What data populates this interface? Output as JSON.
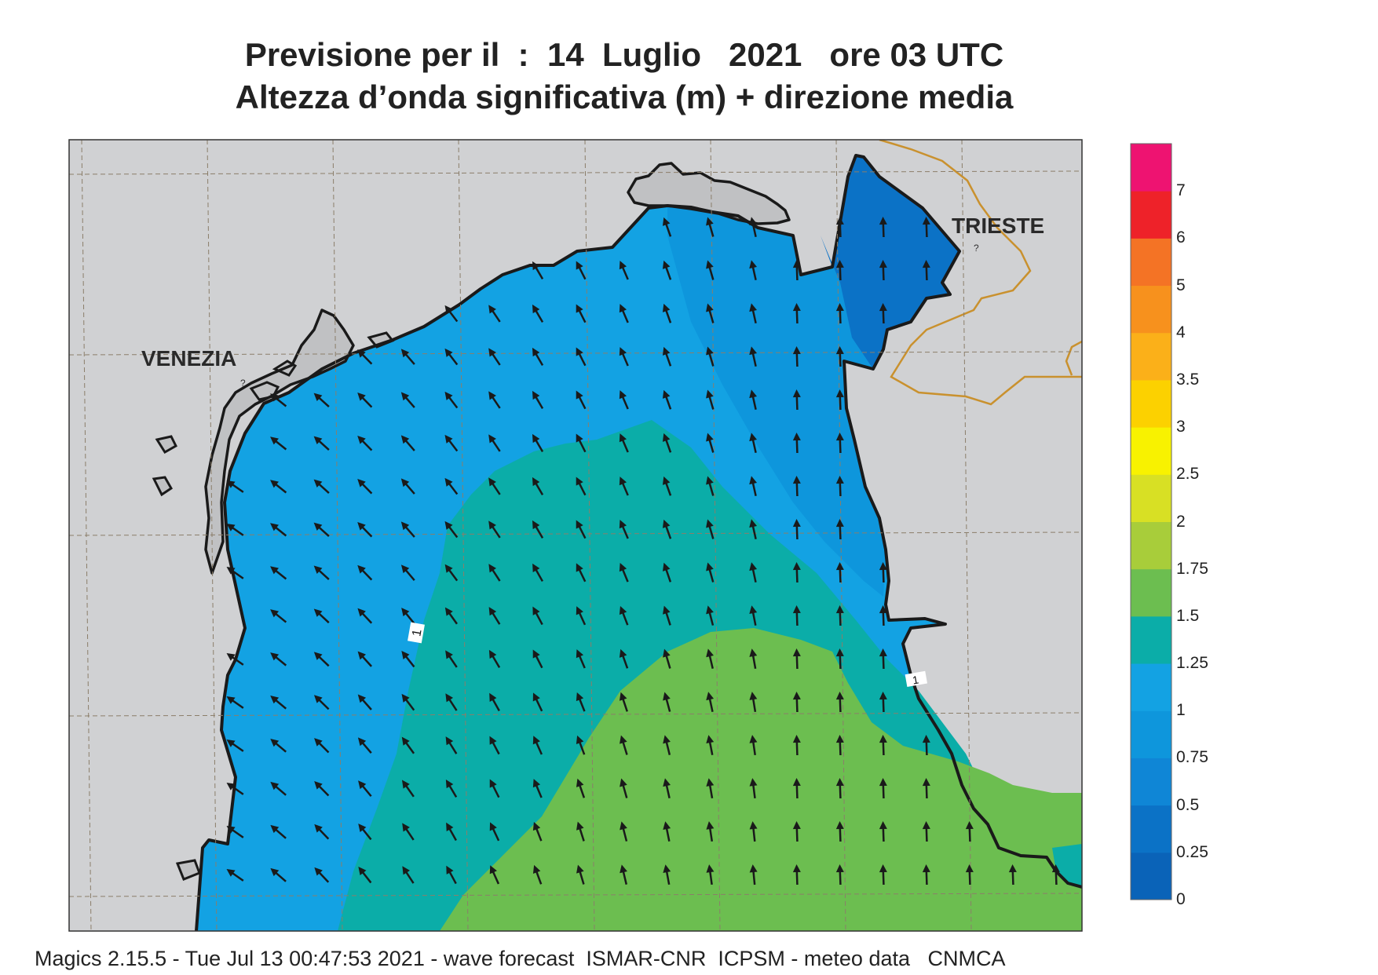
{
  "title": {
    "line1": "Previsione per il  :  14  Luglio   2021   ore 03 UTC",
    "line2": "Altezza d’onda significativa (m) + direzione media"
  },
  "footer": "Magics 2.15.5 - Tue Jul 13 00:47:53 2021 - wave forecast  ISMAR-CNR  ICPSM - meteo data   CNMCA",
  "cities": {
    "venezia": "VENEZIA",
    "trieste": "TRIESTE"
  },
  "contour_label": "1",
  "colorbar": {
    "labels": [
      "0",
      "0.25",
      "0.5",
      "0.75",
      "1",
      "1.25",
      "1.5",
      "1.75",
      "2",
      "2.5",
      "3",
      "3.5",
      "4",
      "5",
      "6",
      "7"
    ],
    "colors": [
      "#0a63b8",
      "#0b72c6",
      "#0f86d6",
      "#0e96dc",
      "#13a2e3",
      "#0bada8",
      "#6cbe50",
      "#a8cd3a",
      "#d8e024",
      "#f8f200",
      "#fcd100",
      "#fbb019",
      "#f7911d",
      "#f47325",
      "#ee2229",
      "#ee1371"
    ]
  },
  "colors": {
    "land": "#d0d1d3",
    "lagoon": "#c0c1c3",
    "coast": "#1a1a1a",
    "border": "#c9912e",
    "grid": "#8b7e6a",
    "arrow": "#1a1a1a"
  }
}
